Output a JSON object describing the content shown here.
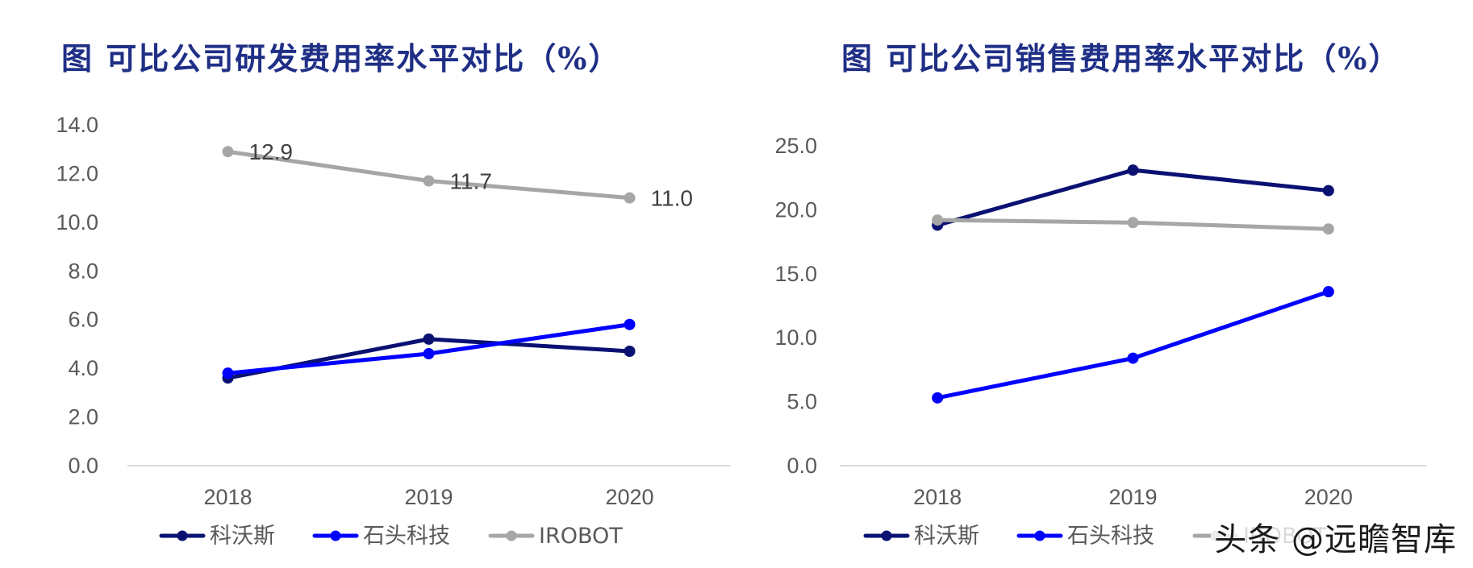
{
  "chart_data": [
    {
      "type": "line",
      "title": "图 可比公司研发费用率水平对比（%）",
      "categories": [
        "2018",
        "2019",
        "2020"
      ],
      "series": [
        {
          "name": "科沃斯",
          "values": [
            3.6,
            5.2,
            4.7
          ],
          "color": "#0a1172"
        },
        {
          "name": "石头科技",
          "values": [
            3.8,
            4.6,
            5.8
          ],
          "color": "#0000ff"
        },
        {
          "name": "IROBOT",
          "values": [
            12.9,
            11.7,
            11.0
          ],
          "color": "#a6a6a6",
          "data_labels": [
            "12.9",
            "11.7",
            "11.0"
          ]
        }
      ],
      "ylim": [
        0,
        14
      ],
      "yticks": [
        "0.0",
        "2.0",
        "4.0",
        "6.0",
        "8.0",
        "10.0",
        "12.0",
        "14.0"
      ],
      "grid": false,
      "legend_position": "bottom"
    },
    {
      "type": "line",
      "title": "图 可比公司销售费用率水平对比（%）",
      "categories": [
        "2018",
        "2019",
        "2020"
      ],
      "series": [
        {
          "name": "科沃斯",
          "values": [
            18.8,
            23.1,
            21.5
          ],
          "color": "#0a1172"
        },
        {
          "name": "石头科技",
          "values": [
            5.3,
            8.4,
            13.6
          ],
          "color": "#0000ff"
        },
        {
          "name": "IROBOT",
          "values": [
            19.2,
            19.0,
            18.5
          ],
          "color": "#a6a6a6"
        }
      ],
      "ylim": [
        0,
        25
      ],
      "yticks": [
        "0.0",
        "5.0",
        "10.0",
        "15.0",
        "20.0",
        "25.0"
      ],
      "grid": false,
      "legend_position": "bottom"
    }
  ],
  "watermark": "头条 @远瞻智库"
}
